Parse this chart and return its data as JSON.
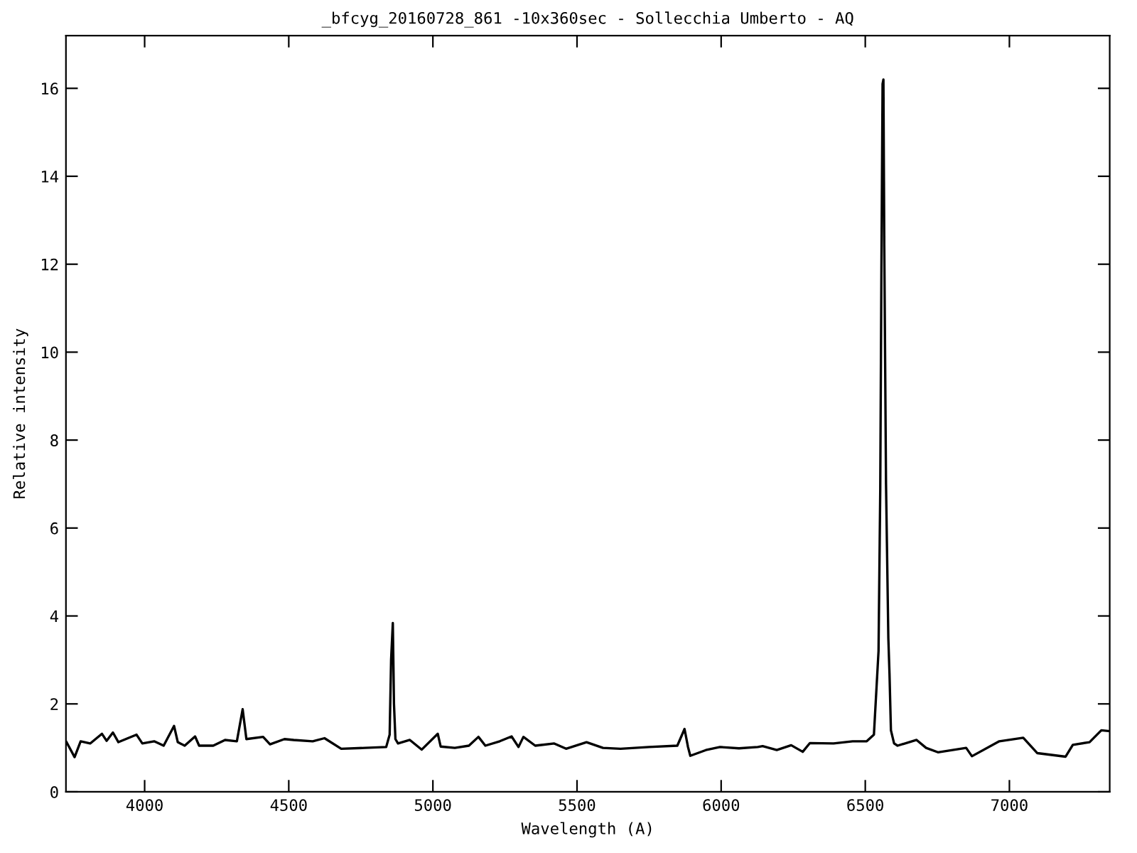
{
  "chart_data": {
    "type": "line",
    "title": "_bfcyg_20160728_861 -10x360sec - Sollecchia Umberto - AQ",
    "xlabel": "Wavelength (A)",
    "ylabel": "Relative intensity",
    "series": [
      {
        "color": "#000000",
        "x": [
          3729,
          3757,
          3778,
          3811,
          3852,
          3868,
          3890,
          3909,
          3972,
          3992,
          4033,
          4066,
          4102,
          4115,
          4139,
          4175,
          4189,
          4238,
          4279,
          4320,
          4340,
          4353,
          4411,
          4435,
          4485,
          4517,
          4583,
          4624,
          4682,
          4764,
          4838,
          4850,
          4855,
          4861,
          4865,
          4870,
          4879,
          4920,
          4961,
          5017,
          5027,
          5076,
          5125,
          5158,
          5182,
          5232,
          5273,
          5297,
          5314,
          5355,
          5421,
          5462,
          5533,
          5590,
          5651,
          5750,
          5848,
          5873,
          5885,
          5893,
          5947,
          5996,
          6062,
          6127,
          6144,
          6193,
          6243,
          6283,
          6308,
          6390,
          6456,
          6505,
          6530,
          6546,
          6552,
          6556,
          6560,
          6563,
          6566,
          6572,
          6580,
          6584,
          6589,
          6600,
          6612,
          6678,
          6711,
          6752,
          6850,
          6870,
          6965,
          7048,
          7097,
          7195,
          7220,
          7278,
          7319,
          7348
        ],
        "values": [
          1.13,
          0.79,
          1.15,
          1.1,
          1.32,
          1.16,
          1.35,
          1.13,
          1.3,
          1.1,
          1.15,
          1.05,
          1.5,
          1.13,
          1.05,
          1.26,
          1.05,
          1.05,
          1.18,
          1.15,
          1.88,
          1.2,
          1.25,
          1.08,
          1.2,
          1.18,
          1.15,
          1.22,
          0.98,
          1.0,
          1.02,
          1.3,
          3.0,
          3.84,
          2.0,
          1.2,
          1.1,
          1.18,
          0.96,
          1.32,
          1.03,
          1.0,
          1.05,
          1.25,
          1.05,
          1.15,
          1.26,
          1.02,
          1.25,
          1.05,
          1.1,
          0.98,
          1.13,
          1.0,
          0.98,
          1.02,
          1.05,
          1.43,
          1.02,
          0.82,
          0.95,
          1.02,
          0.99,
          1.02,
          1.04,
          0.95,
          1.06,
          0.91,
          1.11,
          1.1,
          1.15,
          1.15,
          1.3,
          3.2,
          6.9,
          11.9,
          16.1,
          16.2,
          12.4,
          7.0,
          3.5,
          2.7,
          1.4,
          1.1,
          1.05,
          1.18,
          1.0,
          0.9,
          1.0,
          0.81,
          1.15,
          1.23,
          0.88,
          0.8,
          1.07,
          1.13,
          1.4,
          1.38
        ]
      }
    ],
    "xlim": [
      3727,
      7348
    ],
    "ylim": [
      0,
      17.2
    ],
    "xticks": [
      4000,
      4500,
      5000,
      5500,
      6000,
      6500,
      7000
    ],
    "yticks": [
      0,
      2,
      4,
      6,
      8,
      10,
      12,
      14,
      16
    ],
    "grid": false,
    "legend": false,
    "marker": "none",
    "line_style": "solid"
  }
}
